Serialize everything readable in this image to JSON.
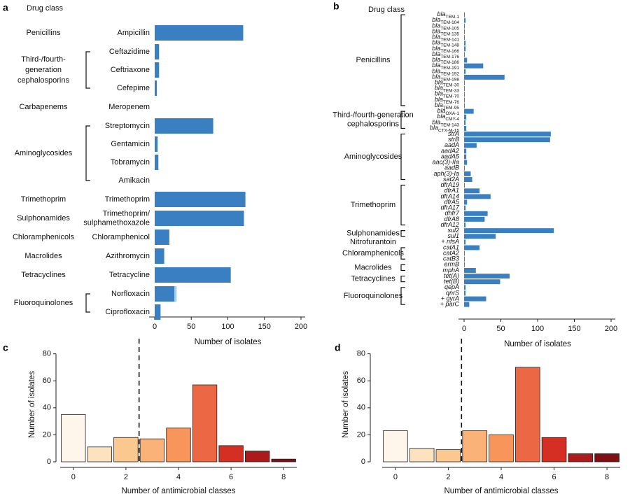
{
  "colors": {
    "bar": "#3a7fc1",
    "bar_light": "#a9cde8",
    "hist": [
      "#fef6ea",
      "#fde2c0",
      "#fbc98f",
      "#fbb278",
      "#f7955a",
      "#ec6744",
      "#d52e23",
      "#ad1a1c",
      "#7f0f14"
    ],
    "axis": "#222222"
  },
  "chart_data": [
    {
      "panel": "a",
      "type": "bar",
      "orientation": "horizontal",
      "header": "Drug class",
      "xlabel": "Number of isolates",
      "xlim": [
        0,
        200
      ],
      "xticks": [
        "0",
        "50",
        "100",
        "150",
        "200"
      ],
      "groups": [
        {
          "class": "Penicillins",
          "class_lines": [
            "Penicillins"
          ],
          "items": [
            {
              "name": "Ampicillin",
              "value": 121
            }
          ]
        },
        {
          "class": "Third-/fourth-generation cephalosporins",
          "class_lines": [
            "Third-/fourth-",
            "generation",
            "cephalosporins"
          ],
          "items": [
            {
              "name": "Ceftazidime",
              "value": 6
            },
            {
              "name": "Ceftriaxone",
              "value": 6
            },
            {
              "name": "Cefepime",
              "value": 3
            }
          ]
        },
        {
          "class": "Carbapenems",
          "class_lines": [
            "Carbapenems"
          ],
          "items": [
            {
              "name": "Meropenem",
              "value": 0
            }
          ]
        },
        {
          "class": "Aminoglycosides",
          "class_lines": [
            "Aminoglycosides"
          ],
          "items": [
            {
              "name": "Streptomycin",
              "value": 80
            },
            {
              "name": "Gentamicin",
              "value": 4
            },
            {
              "name": "Tobramycin",
              "value": 5
            },
            {
              "name": "Amikacin",
              "value": 0
            }
          ]
        },
        {
          "class": "Trimethoprim",
          "class_lines": [
            "Trimethoprim"
          ],
          "items": [
            {
              "name": "Trimethoprim",
              "value": 124
            }
          ]
        },
        {
          "class": "Sulphonamides",
          "class_lines": [
            "Sulphonamides"
          ],
          "items": [
            {
              "name": "Trimethoprim/ sulphamethoxazole",
              "name_lines": [
                "Trimethoprim/",
                "sulphamethoxazole"
              ],
              "value": 122
            }
          ]
        },
        {
          "class": "Chloramphenicols",
          "class_lines": [
            "Chloramphenicols"
          ],
          "items": [
            {
              "name": "Chloramphenicol",
              "value": 20
            }
          ]
        },
        {
          "class": "Macrolides",
          "class_lines": [
            "Macrolides"
          ],
          "items": [
            {
              "name": "Azithromycin",
              "value": 13
            }
          ]
        },
        {
          "class": "Tetracyclines",
          "class_lines": [
            "Tetracyclines"
          ],
          "items": [
            {
              "name": "Tetracycline",
              "value": 104
            }
          ]
        },
        {
          "class": "Fluoroquinolones",
          "class_lines": [
            "Fluoroquinolones"
          ],
          "items": [
            {
              "name": "Norfloxacin",
              "value": 27,
              "extra": 3
            },
            {
              "name": "Ciprofloxacin",
              "value": 8
            }
          ]
        }
      ]
    },
    {
      "panel": "b",
      "type": "bar",
      "orientation": "horizontal",
      "header": "Drug class",
      "xlabel": "Number of isolates",
      "xlim": [
        0,
        200
      ],
      "xticks": [
        "0",
        "50",
        "100",
        "150",
        "200"
      ],
      "groups": [
        {
          "class": "Penicillins",
          "class_lines": [
            "Penicillins"
          ],
          "items": [
            {
              "name": "bla",
              "sub": "TEM-1",
              "value": 1
            },
            {
              "name": "bla",
              "sub": "TEM-104",
              "value": 2
            },
            {
              "name": "bla",
              "sub": "TEM-105",
              "value": 1
            },
            {
              "name": "bla",
              "sub": "TEM-135",
              "value": 1
            },
            {
              "name": "bla",
              "sub": "TEM-141",
              "value": 1
            },
            {
              "name": "bla",
              "sub": "TEM-148",
              "value": 2
            },
            {
              "name": "bla",
              "sub": "TEM-166",
              "value": 2
            },
            {
              "name": "bla",
              "sub": "TEM-176",
              "value": 1
            },
            {
              "name": "bla",
              "sub": "TEM-186",
              "value": 4
            },
            {
              "name": "bla",
              "sub": "TEM-191",
              "value": 26
            },
            {
              "name": "bla",
              "sub": "TEM-192",
              "value": 2
            },
            {
              "name": "bla",
              "sub": "TEM-198",
              "value": 55
            },
            {
              "name": "bla",
              "sub": "TEM-30",
              "value": 1
            },
            {
              "name": "bla",
              "sub": "TEM-33",
              "value": 1
            },
            {
              "name": "bla",
              "sub": "TEM-70",
              "value": 1
            },
            {
              "name": "bla",
              "sub": "TEM-76",
              "value": 1
            },
            {
              "name": "bla",
              "sub": "TEM-95",
              "value": 1
            }
          ]
        },
        {
          "class": "Third-/fourth-generation cephalosporins",
          "class_lines": [
            "Third-/fourth-generation",
            "cephalosporins"
          ],
          "items": [
            {
              "name": "bla",
              "sub": "OXA-1",
              "value": 13
            },
            {
              "name": "bla",
              "sub": "CMY-4",
              "value": 3
            },
            {
              "name": "bla",
              "sub": "TEM-143",
              "value": 2
            },
            {
              "name": "bla",
              "sub": "CTX-M-15",
              "value": 3
            }
          ]
        },
        {
          "class": "Aminoglycosides",
          "class_lines": [
            "Aminoglycosides"
          ],
          "items": [
            {
              "name": "strA",
              "value": 118
            },
            {
              "name": "strB",
              "value": 117
            },
            {
              "name": "aadA",
              "value": 17
            },
            {
              "name": "aadA2",
              "value": 3
            },
            {
              "name": "aadA5",
              "value": 3
            },
            {
              "name": "aac(3)-IIa",
              "value": 4
            },
            {
              "name": "aadB",
              "value": 1
            },
            {
              "name": "aph(3)-Ia",
              "value": 9
            },
            {
              "name": "sat2A",
              "value": 11
            }
          ]
        },
        {
          "class": "Trimethoprim",
          "class_lines": [
            "Trimethoprim"
          ],
          "items": [
            {
              "name": "dfrA19",
              "value": 1
            },
            {
              "name": "dfrA1",
              "value": 21
            },
            {
              "name": "dfrA14",
              "value": 36
            },
            {
              "name": "dfrA5",
              "value": 4
            },
            {
              "name": "dfrA17",
              "value": 2
            },
            {
              "name": "dhfr7",
              "value": 32
            },
            {
              "name": "dfrA8",
              "value": 28
            },
            {
              "name": "dfrA12",
              "value": 2
            }
          ]
        },
        {
          "class": "Sulphonamides",
          "class_lines": [
            "Sulphonamides"
          ],
          "items": [
            {
              "name": "sul2",
              "value": 122
            },
            {
              "name": "sul1",
              "value": 43
            }
          ]
        },
        {
          "class": "Nitrofurantoin",
          "class_lines": [
            "Nitrofurantoin"
          ],
          "bracket": false,
          "items": [
            {
              "name": "+ nfsA",
              "value": 2
            }
          ]
        },
        {
          "class": "Chloramphenicols",
          "class_lines": [
            "Chloramphenicols"
          ],
          "items": [
            {
              "name": "catA1",
              "value": 21
            },
            {
              "name": "catA2",
              "value": 1
            },
            {
              "name": "catB3",
              "value": 1
            }
          ]
        },
        {
          "class": "Macrolides",
          "class_lines": [
            "Macrolides"
          ],
          "items": [
            {
              "name": "ermB",
              "value": 1
            },
            {
              "name": "mphA",
              "value": 16
            }
          ]
        },
        {
          "class": "Tetracyclines",
          "class_lines": [
            "Tetracyclines"
          ],
          "items": [
            {
              "name": "tet(A)",
              "value": 62
            },
            {
              "name": "tet(B)",
              "value": 49
            }
          ]
        },
        {
          "class": "Fluoroquinolones",
          "class_lines": [
            "Fluoroquinolones"
          ],
          "items": [
            {
              "name": "qepA",
              "value": 2
            },
            {
              "name": "qnrS",
              "value": 2
            },
            {
              "name": "+ gyrA",
              "value": 30
            },
            {
              "name": "+ parC",
              "value": 7
            }
          ]
        }
      ]
    },
    {
      "panel": "c",
      "type": "bar",
      "xlabel": "Number of antimicrobial classes",
      "ylabel": "Number of isolates",
      "ylim": [
        0,
        85
      ],
      "yticks": [
        "0",
        "20",
        "40",
        "60",
        "80"
      ],
      "xticks": [
        "0",
        "2",
        "4",
        "6",
        "8"
      ],
      "x": [
        0,
        1,
        2,
        3,
        4,
        5,
        6,
        7,
        8
      ],
      "values": [
        35,
        11,
        18,
        17,
        25,
        57,
        12,
        8,
        2
      ],
      "cutoff": 2.5
    },
    {
      "panel": "d",
      "type": "bar",
      "xlabel": "Number of antimicrobial classes",
      "ylabel": "Number of isolates",
      "ylim": [
        0,
        85
      ],
      "yticks": [
        "0",
        "20",
        "40",
        "60",
        "80"
      ],
      "xticks": [
        "0",
        "2",
        "4",
        "6",
        "8"
      ],
      "x": [
        0,
        1,
        2,
        3,
        4,
        5,
        6,
        7,
        8
      ],
      "values": [
        23,
        10,
        9,
        23,
        20,
        70,
        18,
        6,
        6
      ],
      "cutoff": 2.5
    }
  ]
}
